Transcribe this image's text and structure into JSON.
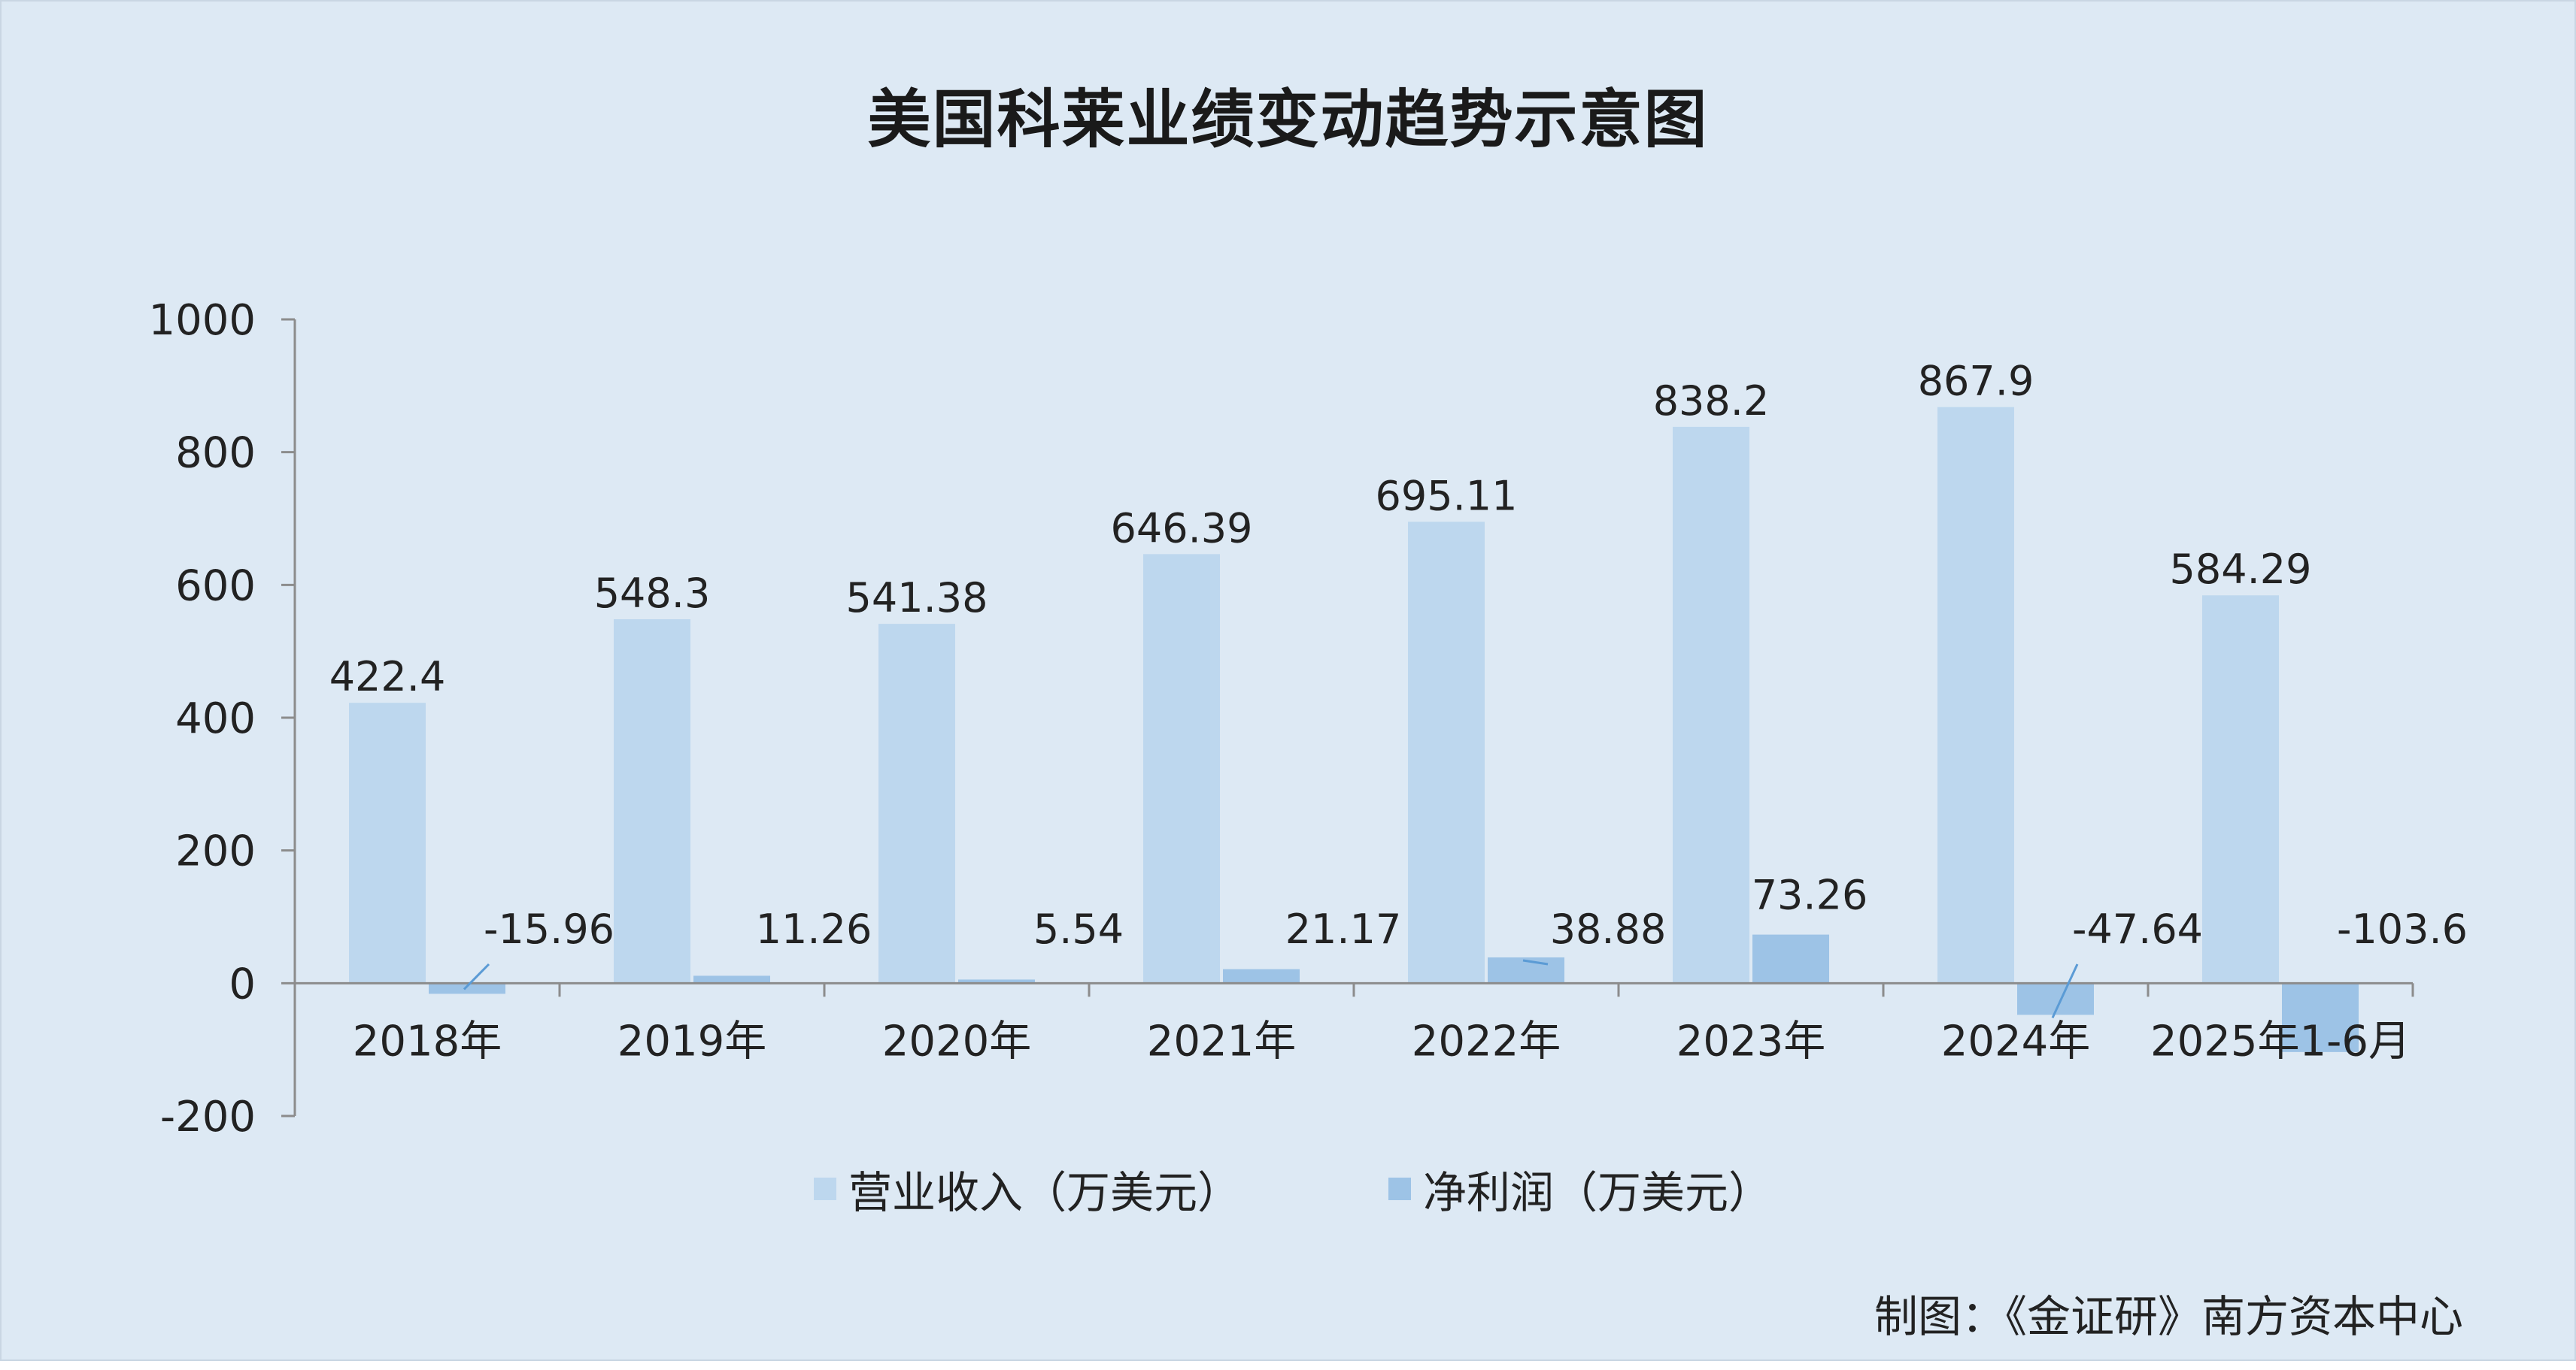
{
  "credit": "制图：《金证研》南方资本中心",
  "colors": {
    "background": "#dde9f4",
    "revenue": "#bdd7ee",
    "profit": "#9dc3e6"
  },
  "chart_data": {
    "type": "bar",
    "title": "美国科莱业绩变动趋势示意图",
    "categories": [
      "2018年",
      "2019年",
      "2020年",
      "2021年",
      "2022年",
      "2023年",
      "2024年",
      "2025年1-6月"
    ],
    "series": [
      {
        "name": "营业收入（万美元）",
        "values": [
          422.4,
          548.3,
          541.38,
          646.39,
          695.11,
          838.2,
          867.9,
          584.29
        ],
        "labels": [
          "422.4",
          "548.3",
          "541.38",
          "646.39",
          "695.11",
          "838.2",
          "867.9",
          "584.29"
        ]
      },
      {
        "name": "净利润（万美元）",
        "values": [
          -15.96,
          11.26,
          5.54,
          21.17,
          38.88,
          73.26,
          -47.64,
          -103.6
        ],
        "labels": [
          "-15.96",
          "11.26",
          "5.54",
          "21.17",
          "38.88",
          "73.26",
          "-47.64",
          "-103.6"
        ]
      }
    ],
    "yticks": [
      "1000",
      "800",
      "600",
      "400",
      "200",
      "0",
      "-200"
    ],
    "ylim": [
      -200,
      1000
    ],
    "grid": false,
    "legend": "bottom"
  }
}
